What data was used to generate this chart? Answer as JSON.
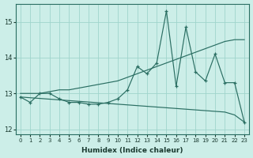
{
  "title": "",
  "xlabel": "Humidex (Indice chaleur)",
  "ylabel": "",
  "bg_color": "#cceee8",
  "line_color": "#2a6e62",
  "grid_color": "#9fd4cc",
  "x_values": [
    0,
    1,
    2,
    3,
    4,
    5,
    6,
    7,
    8,
    9,
    10,
    11,
    12,
    13,
    14,
    15,
    16,
    17,
    18,
    19,
    20,
    21,
    22,
    23
  ],
  "line_jagged": [
    12.9,
    12.75,
    13.0,
    13.0,
    12.85,
    12.75,
    12.75,
    12.7,
    12.7,
    12.75,
    12.85,
    13.1,
    13.75,
    13.55,
    13.85,
    15.3,
    13.2,
    14.85,
    13.6,
    13.35,
    14.1,
    13.3,
    13.3,
    12.2
  ],
  "line_up": [
    13.0,
    13.0,
    13.0,
    13.05,
    13.1,
    13.1,
    13.15,
    13.2,
    13.25,
    13.3,
    13.35,
    13.45,
    13.55,
    13.65,
    13.75,
    13.85,
    13.95,
    14.05,
    14.15,
    14.25,
    14.35,
    14.45,
    14.5,
    14.5
  ],
  "line_down": [
    12.9,
    12.88,
    12.86,
    12.84,
    12.82,
    12.8,
    12.78,
    12.76,
    12.74,
    12.72,
    12.7,
    12.68,
    12.66,
    12.64,
    12.62,
    12.6,
    12.58,
    12.56,
    12.54,
    12.52,
    12.5,
    12.48,
    12.4,
    12.2
  ],
  "ylim": [
    11.85,
    15.5
  ],
  "xlim": [
    -0.5,
    23.5
  ],
  "yticks": [
    12,
    13,
    14,
    15
  ],
  "xticks": [
    0,
    1,
    2,
    3,
    4,
    5,
    6,
    7,
    8,
    9,
    10,
    11,
    12,
    13,
    14,
    15,
    16,
    17,
    18,
    19,
    20,
    21,
    22,
    23
  ]
}
